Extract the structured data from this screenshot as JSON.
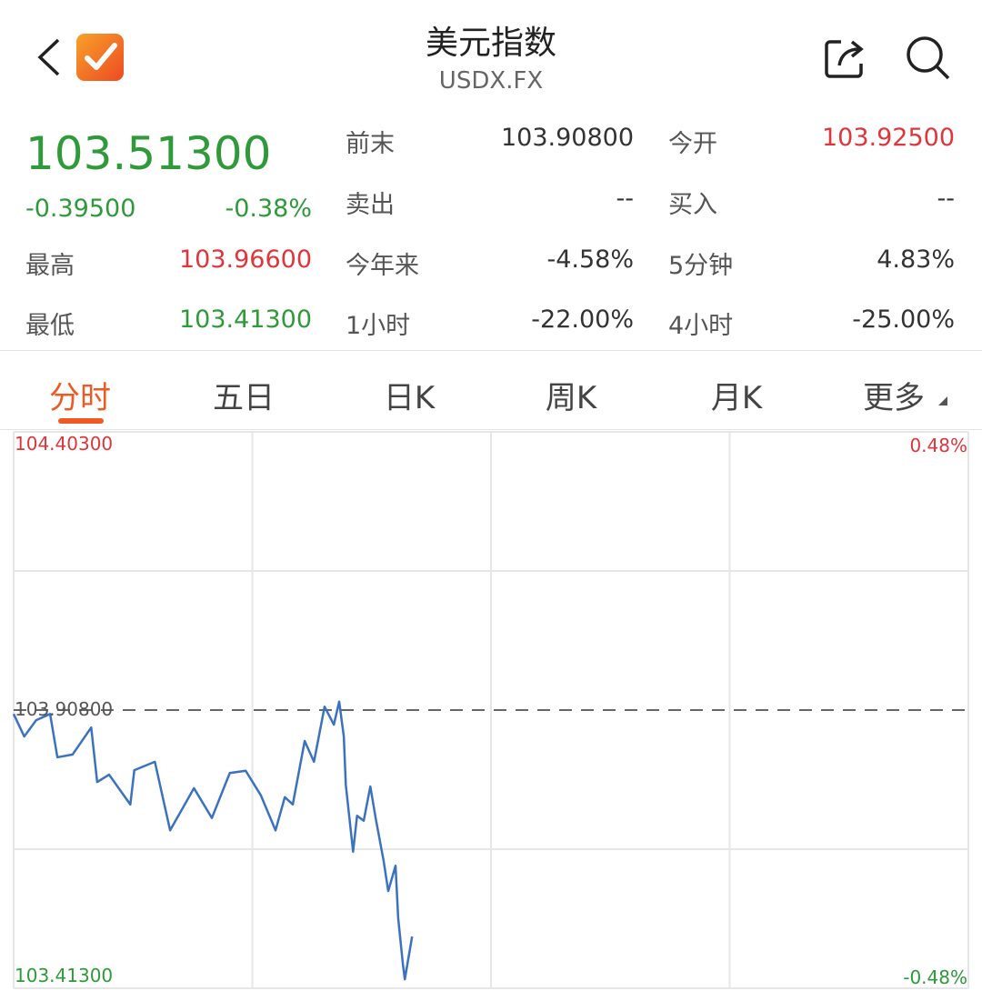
{
  "header": {
    "title": "美元指数",
    "subtitle": "USDX.FX",
    "back_icon": "chevron-left-icon",
    "logo_icon": "checkmark-logo-icon",
    "share_icon": "share-icon",
    "search_icon": "search-icon"
  },
  "quote": {
    "price": "103.51300",
    "change": "-0.39500",
    "change_pct": "-0.38%",
    "high_label": "最高",
    "high": "103.96600",
    "low_label": "最低",
    "low": "103.41300",
    "prev_close_label": "前末",
    "prev_close": "103.90800",
    "open_label": "今开",
    "open": "103.92500",
    "sell_label": "卖出",
    "sell": "--",
    "buy_label": "买入",
    "buy": "--",
    "ytd_label": "今年来",
    "ytd": "-4.58%",
    "m5_label": "5分钟",
    "m5": "4.83%",
    "h1_label": "1小时",
    "h1": "-22.00%",
    "h4_label": "4小时",
    "h4": "-25.00%"
  },
  "tabs": [
    {
      "label": "分时",
      "active": true
    },
    {
      "label": "五日"
    },
    {
      "label": "日K"
    },
    {
      "label": "周K"
    },
    {
      "label": "月K"
    },
    {
      "label": "更多"
    }
  ],
  "colors": {
    "up": "#e0353b",
    "down": "#2f9a3a",
    "accent": "#f05a22",
    "line": "#3b72c0"
  },
  "chart_data": {
    "type": "line",
    "ylim": [
      103.413,
      104.403
    ],
    "xlim": [
      0,
      1440
    ],
    "reference_line": 103.908,
    "left_labels": {
      "top": "104.40300",
      "mid": "103.90800",
      "bottom": "103.41300"
    },
    "right_labels": {
      "top": "0.48%",
      "bottom": "-0.48%"
    },
    "grid": true,
    "series": [
      {
        "x": [
          0,
          16,
          34,
          55,
          66,
          89,
          117,
          126,
          144,
          176,
          182,
          213,
          236,
          272,
          299,
          326,
          350,
          373,
          395,
          409,
          421,
          439,
          453,
          469,
          483,
          491,
          498,
          501,
          512,
          518,
          528,
          538,
          546,
          558,
          565,
          576,
          580,
          587,
          590,
          601
        ],
        "values": [
          103.901,
          103.861,
          103.89,
          103.901,
          103.824,
          103.829,
          103.877,
          103.78,
          103.793,
          103.74,
          103.801,
          103.816,
          103.694,
          103.769,
          103.716,
          103.796,
          103.8,
          103.756,
          103.694,
          103.753,
          103.74,
          103.853,
          103.816,
          103.914,
          103.882,
          103.923,
          103.861,
          103.775,
          103.656,
          103.72,
          103.711,
          103.772,
          103.716,
          103.64,
          103.586,
          103.631,
          103.538,
          103.457,
          103.429,
          103.505
        ]
      }
    ]
  }
}
